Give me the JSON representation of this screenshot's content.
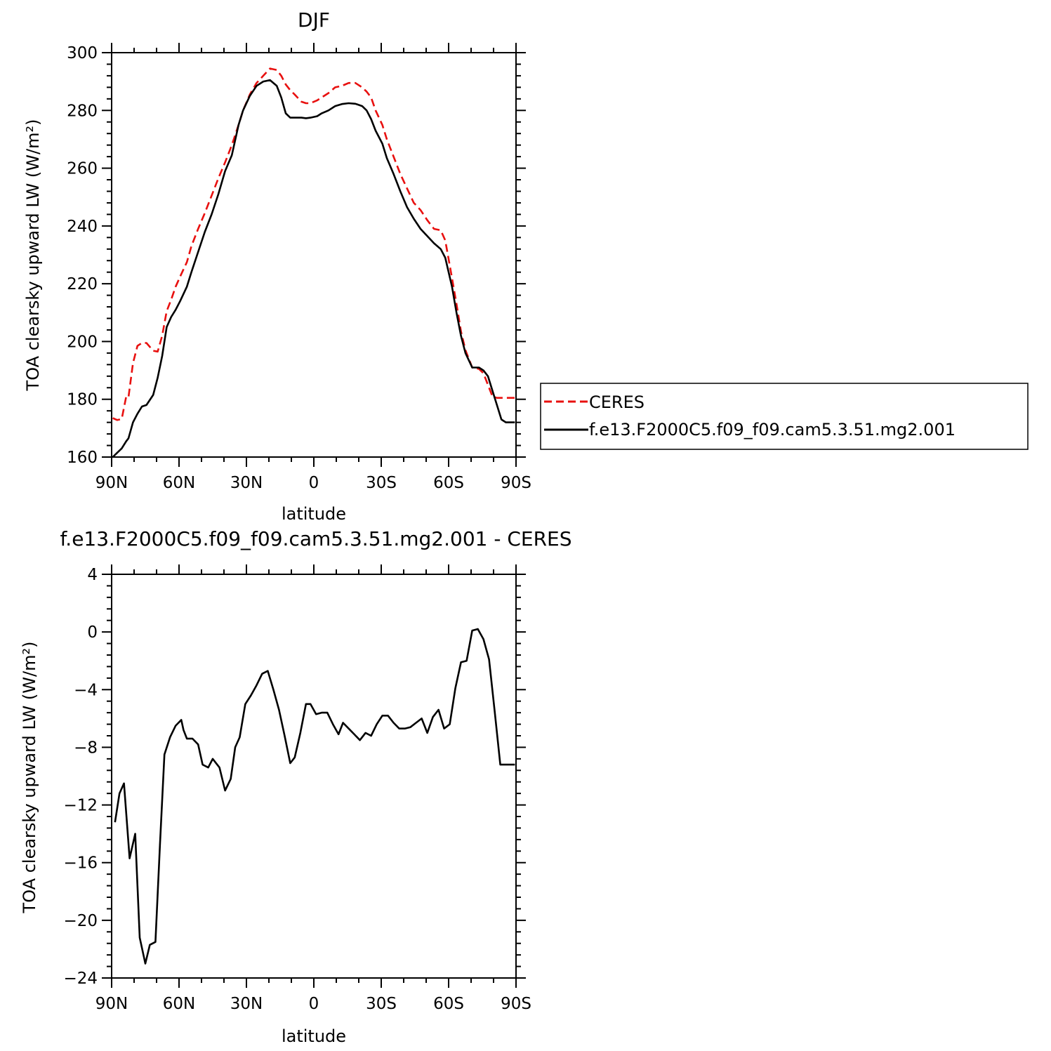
{
  "chart_data": [
    {
      "type": "line",
      "title": "DJF",
      "xlabel": "latitude",
      "ylabel": "TOA clearsky upward LW (W/m²)",
      "xlim": [
        90,
        -90
      ],
      "ylim": [
        160,
        300
      ],
      "yticks": [
        160,
        180,
        200,
        220,
        240,
        260,
        280,
        300
      ],
      "xticks": [
        90,
        60,
        30,
        0,
        -30,
        -60,
        -90
      ],
      "xticklabels": [
        "90N",
        "60N",
        "30N",
        "0",
        "30S",
        "60S",
        "90S"
      ],
      "legend_position": "right",
      "series": [
        {
          "name": "CERES",
          "color": "#e8100f",
          "dash": "dashed",
          "x": [
            89.5,
            87.5,
            85.5,
            83.5,
            82.5,
            80.5,
            78.5,
            76.5,
            74.5,
            71.5,
            69.5,
            67.5,
            65.5,
            63.5,
            61.5,
            59.5,
            56.5,
            54.5,
            51.5,
            48.5,
            45.5,
            42.5,
            39.5,
            36.5,
            33.5,
            31.5,
            28.5,
            25.5,
            22.5,
            19.5,
            16.5,
            14.5,
            12.5,
            10.5,
            8.5,
            5.5,
            3.5,
            1.5,
            -1.5,
            -3.5,
            -6.5,
            -9.5,
            -12.5,
            -15.5,
            -18.5,
            -21.5,
            -23.5,
            -25.5,
            -27.5,
            -30.5,
            -32.5,
            -35.5,
            -38.5,
            -41.5,
            -44.5,
            -47.5,
            -50.5,
            -53.5,
            -56.5,
            -58.5,
            -61.5,
            -63.5,
            -65.5,
            -67.5,
            -70.5,
            -73.5,
            -75.5,
            -77.5,
            -79.5,
            -81.5,
            -83.5,
            -85.5,
            -87.5,
            -89.5
          ],
          "y": [
            173.5,
            172.8,
            173.2,
            181.0,
            180.7,
            192.5,
            198.5,
            199.5,
            199.5,
            196.8,
            196.5,
            202.0,
            210.5,
            214.5,
            219.0,
            222.5,
            227.5,
            233.0,
            239.0,
            244.5,
            250.5,
            256.5,
            262.0,
            268.0,
            275.0,
            280.0,
            285.5,
            289.5,
            292.0,
            294.5,
            294.0,
            292.0,
            289.0,
            287.0,
            285.5,
            283.0,
            282.5,
            282.5,
            283.5,
            284.5,
            286.0,
            288.0,
            288.5,
            289.5,
            289.5,
            288.0,
            286.5,
            284.5,
            280.0,
            275.0,
            270.0,
            264.0,
            258.0,
            253.0,
            248.0,
            245.5,
            242.0,
            239.0,
            238.5,
            235.0,
            222.0,
            213.0,
            203.5,
            197.0,
            191.0,
            190.5,
            189.0,
            185.0,
            181.0,
            180.5,
            180.5,
            180.5,
            180.5,
            180.5
          ]
        },
        {
          "name": "f.e13.F2000C5.f09_f09.cam5.3.51.mg2.001",
          "color": "#000000",
          "dash": "solid",
          "x": [
            89.5,
            87.5,
            85.5,
            83.5,
            82.5,
            80.5,
            78.5,
            76.5,
            74.5,
            71.5,
            69.5,
            67.5,
            65.5,
            63.5,
            61.5,
            59.5,
            56.5,
            54.5,
            51.5,
            48.5,
            45.5,
            42.5,
            39.5,
            36.5,
            33.5,
            31.5,
            28.5,
            25.5,
            22.5,
            19.5,
            16.5,
            14.5,
            12.5,
            10.5,
            8.5,
            5.5,
            3.5,
            1.5,
            -1.5,
            -3.5,
            -6.5,
            -9.5,
            -12.5,
            -15.5,
            -18.5,
            -21.5,
            -23.5,
            -25.5,
            -27.5,
            -30.5,
            -32.5,
            -35.5,
            -38.5,
            -41.5,
            -44.5,
            -47.5,
            -50.5,
            -53.5,
            -56.5,
            -58.5,
            -61.5,
            -63.5,
            -65.5,
            -67.5,
            -70.5,
            -73.5,
            -75.5,
            -77.5,
            -79.5,
            -81.5,
            -83.5,
            -85.5,
            -87.5,
            -89.5
          ],
          "y": [
            160.0,
            161.5,
            163.0,
            165.5,
            166.5,
            172.0,
            175.0,
            177.5,
            178.0,
            181.5,
            187.5,
            195.0,
            205.0,
            208.5,
            211.0,
            214.0,
            219.0,
            224.0,
            231.0,
            238.0,
            244.0,
            251.0,
            259.0,
            264.5,
            275.0,
            280.0,
            285.0,
            288.5,
            290.0,
            290.5,
            288.5,
            284.5,
            279.0,
            277.5,
            277.5,
            277.5,
            277.3,
            277.5,
            278.0,
            279.0,
            280.0,
            281.5,
            282.2,
            282.5,
            282.3,
            281.5,
            280.0,
            277.0,
            273.0,
            268.5,
            263.5,
            258.0,
            252.0,
            246.5,
            242.5,
            239.0,
            236.5,
            234.0,
            232.0,
            229.0,
            219.0,
            210.0,
            202.0,
            196.0,
            191.0,
            191.0,
            190.0,
            188.0,
            183.0,
            178.0,
            173.0,
            172.0,
            172.0,
            172.0
          ]
        }
      ]
    },
    {
      "type": "line",
      "title": "f.e13.F2000C5.f09_f09.cam5.3.51.mg2.001 - CERES",
      "xlabel": "latitude",
      "ylabel": "TOA clearsky upward LW (W/m²)",
      "xlim": [
        90,
        -90
      ],
      "ylim": [
        -24,
        4
      ],
      "yticks": [
        -24,
        -20,
        -16,
        -12,
        -8,
        -4,
        0,
        4
      ],
      "xticks": [
        90,
        60,
        30,
        0,
        -30,
        -60,
        -90
      ],
      "xticklabels": [
        "90N",
        "60N",
        "30N",
        "0",
        "30S",
        "60S",
        "90S"
      ],
      "series": [
        {
          "color": "#000000",
          "dash": "solid",
          "x": [
            88.5,
            86.5,
            84.5,
            82.0,
            79.5,
            77.5,
            75.0,
            73.0,
            70.5,
            68.5,
            66.5,
            64.0,
            61.5,
            59.0,
            58.0,
            56.5,
            54.0,
            51.5,
            49.5,
            47.0,
            45.0,
            42.0,
            39.5,
            37.0,
            35.0,
            33.0,
            30.5,
            28.0,
            25.5,
            23.0,
            20.5,
            18.0,
            15.5,
            13.0,
            10.5,
            8.5,
            6.0,
            3.5,
            1.5,
            -1.0,
            -3.5,
            -6.0,
            -8.5,
            -11.0,
            -13.0,
            -15.5,
            -18.0,
            -20.5,
            -23.0,
            -25.5,
            -28.0,
            -30.5,
            -33.0,
            -35.5,
            -38.0,
            -40.5,
            -43.0,
            -45.5,
            -48.0,
            -50.5,
            -53.0,
            -55.5,
            -58.0,
            -60.5,
            -63.0,
            -65.5,
            -68.0,
            -70.5,
            -73.0,
            -75.5,
            -78.0,
            -80.5,
            -83.0,
            -85.5,
            -88.0,
            -89.5
          ],
          "y": [
            -13.2,
            -11.2,
            -10.5,
            -15.7,
            -14.0,
            -21.2,
            -23.0,
            -21.7,
            -21.5,
            -14.8,
            -8.5,
            -7.3,
            -6.5,
            -6.1,
            -6.8,
            -7.4,
            -7.4,
            -7.8,
            -9.2,
            -9.4,
            -8.8,
            -9.4,
            -11.0,
            -10.2,
            -8.0,
            -7.3,
            -5.0,
            -4.4,
            -3.7,
            -2.9,
            -2.7,
            -4.0,
            -5.4,
            -7.2,
            -9.1,
            -8.7,
            -7.0,
            -5.0,
            -5.0,
            -5.7,
            -5.6,
            -5.6,
            -6.4,
            -7.1,
            -6.3,
            -6.7,
            -7.1,
            -7.5,
            -7.0,
            -7.2,
            -6.4,
            -5.8,
            -5.8,
            -6.3,
            -6.7,
            -6.7,
            -6.6,
            -6.3,
            -6.0,
            -7.0,
            -5.9,
            -5.4,
            -6.7,
            -6.4,
            -3.9,
            -2.1,
            -2.0,
            0.1,
            0.2,
            -0.5,
            -1.9,
            -5.5,
            -9.2,
            -9.2,
            -9.2,
            -9.2
          ]
        }
      ]
    }
  ]
}
